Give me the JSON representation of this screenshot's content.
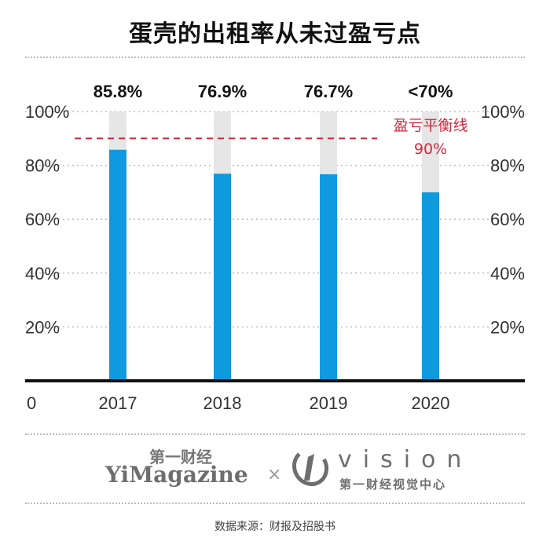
{
  "title": "蛋壳的出租率从未过盈亏点",
  "chart_data": {
    "type": "bar",
    "categories": [
      "2017",
      "2018",
      "2019",
      "2020"
    ],
    "values": [
      85.8,
      76.9,
      76.7,
      70
    ],
    "value_labels": [
      "85.8%",
      "76.9%",
      "76.7%",
      "<70%"
    ],
    "ylim": [
      0,
      100
    ],
    "yticks": [
      0,
      20,
      40,
      60,
      80,
      100
    ],
    "ytick_labels": [
      "0",
      "20%",
      "40%",
      "60%",
      "80%",
      "100%"
    ],
    "reference_line": {
      "value": 90,
      "label": "盈亏平衡线",
      "value_label": "90%"
    },
    "bar_color": "#0f9ae0",
    "background_bar_color": "#e6e6e6",
    "reference_color": "#d7263d",
    "grid": true
  },
  "logos": {
    "left_cn": "第一财经",
    "left_en": "YiMagazine",
    "separator": "×",
    "right_en": "vision",
    "right_cn": "第一财经视觉中心"
  },
  "source": "数据来源：财报及招股书"
}
